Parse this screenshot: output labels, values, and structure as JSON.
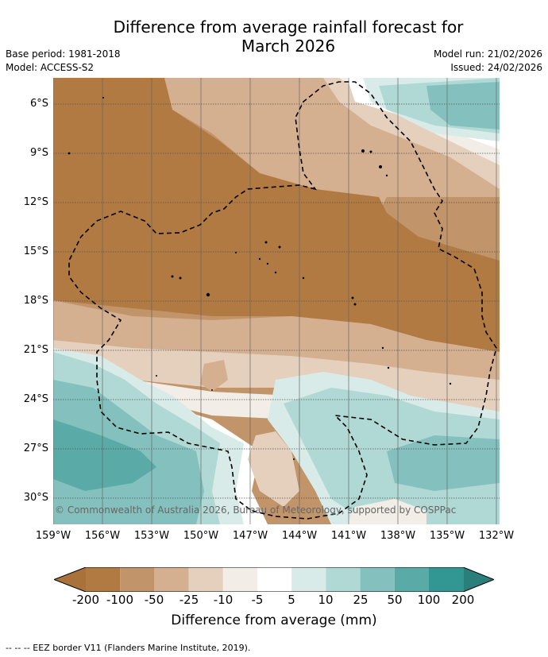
{
  "title": "Difference from average rainfall forecast for March 2026",
  "title_lines": [
    "Difference from average rainfall forecast for",
    "March 2026"
  ],
  "base_period": "Base period: 1981-2018",
  "model": "Model: ACCESS-S2",
  "model_run": "Model run: 21/02/2026",
  "issued": "Issued: 24/02/2026",
  "copyright": "© Commonwealth of Australia 2026, Bureau of Meteorology, supported by COSPPac",
  "lat_labels": [
    "6°S",
    "9°S",
    "12°S",
    "15°S",
    "18°S",
    "21°S",
    "24°S",
    "27°S",
    "30°S"
  ],
  "lon_labels": [
    "159°W",
    "156°W",
    "153°W",
    "150°W",
    "147°W",
    "144°W",
    "141°W",
    "138°W",
    "135°W",
    "132°W"
  ],
  "colorbar": {
    "ticks": [
      "-200",
      "-100",
      "-50",
      "-25",
      "-10",
      "-5",
      "5",
      "10",
      "25",
      "50",
      "100",
      "200"
    ],
    "colors": [
      "#a8723a",
      "#b17a42",
      "#c1946a",
      "#d4b090",
      "#e5d0bd",
      "#f2ede6",
      "#ffffff",
      "#d8ebe8",
      "#b0d8d5",
      "#84c1be",
      "#5aaaa8",
      "#329692",
      "#2a7f7b"
    ],
    "title": "Difference from average (mm)"
  },
  "footnote": "--  --  -- EEZ border V11 (Flanders Marine Institute, 2019)."
}
